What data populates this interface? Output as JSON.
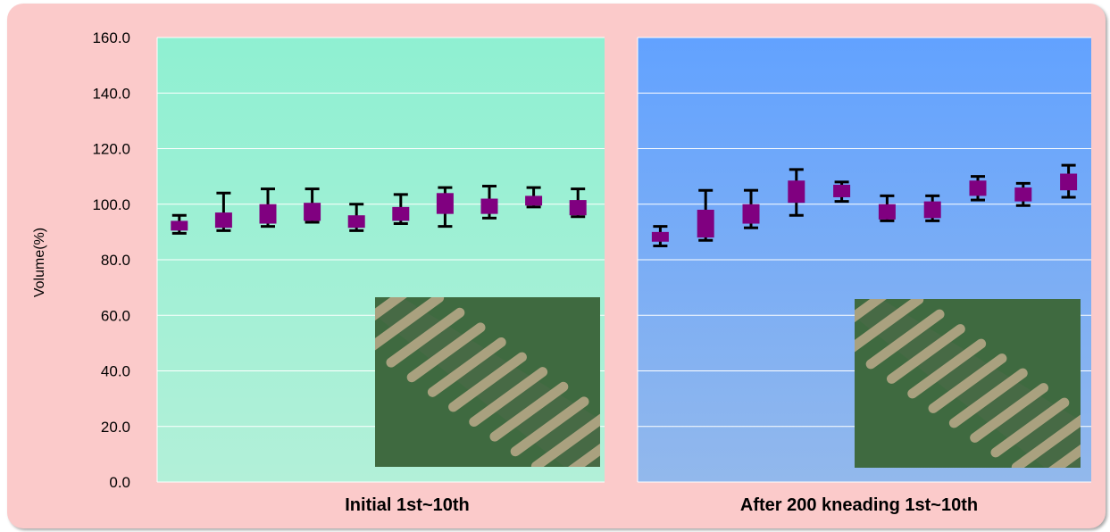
{
  "chart_data": [
    {
      "type": "box",
      "panel_label": "Initial  1st~10th",
      "ylabel": "Volume(%)",
      "ylim": [
        0,
        160
      ],
      "y_ticks": [
        "0.0",
        "20.0",
        "40.0",
        "60.0",
        "80.0",
        "100.0",
        "120.0",
        "140.0",
        "160.0"
      ],
      "grid": true,
      "background_gradient": [
        "#8ff0d2",
        "#b2f0d8"
      ],
      "box_color": "#800080",
      "boxes": [
        {
          "min": 89.5,
          "q1": 90.5,
          "q3": 94.0,
          "max": 96.0
        },
        {
          "min": 90.5,
          "q1": 91.5,
          "q3": 97.0,
          "max": 104.0
        },
        {
          "min": 92.0,
          "q1": 93.0,
          "q3": 100.0,
          "max": 105.5
        },
        {
          "min": 93.5,
          "q1": 94.0,
          "q3": 100.5,
          "max": 105.5
        },
        {
          "min": 90.5,
          "q1": 91.5,
          "q3": 96.0,
          "max": 100.0
        },
        {
          "min": 93.0,
          "q1": 94.0,
          "q3": 99.0,
          "max": 103.5
        },
        {
          "min": 92.0,
          "q1": 96.5,
          "q3": 104.0,
          "max": 106.0
        },
        {
          "min": 95.0,
          "q1": 96.5,
          "q3": 102.0,
          "max": 106.5
        },
        {
          "min": 99.0,
          "q1": 99.5,
          "q3": 103.0,
          "max": 106.0
        },
        {
          "min": 95.5,
          "q1": 96.0,
          "q3": 101.5,
          "max": 105.5
        }
      ]
    },
    {
      "type": "box",
      "panel_label": "After 200 kneading  1st~10th",
      "ylim": [
        0,
        160
      ],
      "grid": true,
      "background_gradient": [
        "#62a2ff",
        "#92b8ec"
      ],
      "box_color": "#800080",
      "boxes": [
        {
          "min": 85.0,
          "q1": 86.5,
          "q3": 90.0,
          "max": 92.0
        },
        {
          "min": 87.0,
          "q1": 88.0,
          "q3": 98.0,
          "max": 105.0
        },
        {
          "min": 91.5,
          "q1": 93.0,
          "q3": 100.0,
          "max": 105.0
        },
        {
          "min": 96.0,
          "q1": 100.5,
          "q3": 108.5,
          "max": 112.5
        },
        {
          "min": 101.0,
          "q1": 102.5,
          "q3": 107.0,
          "max": 108.0
        },
        {
          "min": 94.0,
          "q1": 94.5,
          "q3": 100.0,
          "max": 103.0
        },
        {
          "min": 94.0,
          "q1": 95.0,
          "q3": 101.0,
          "max": 103.0
        },
        {
          "min": 101.5,
          "q1": 103.0,
          "q3": 108.5,
          "max": 110.0
        },
        {
          "min": 99.5,
          "q1": 101.0,
          "q3": 106.0,
          "max": 107.5
        },
        {
          "min": 102.5,
          "q1": 105.0,
          "q3": 111.0,
          "max": 114.0
        }
      ]
    }
  ],
  "insets": [
    {
      "name": "initial-print-photo",
      "stripe_count": 11,
      "background": "#3f6a40",
      "stripe_color": "#b5a886"
    },
    {
      "name": "after-kneading-print-photo",
      "stripe_count": 11,
      "background": "#3f6a40",
      "stripe_color": "#b5a886"
    }
  ]
}
